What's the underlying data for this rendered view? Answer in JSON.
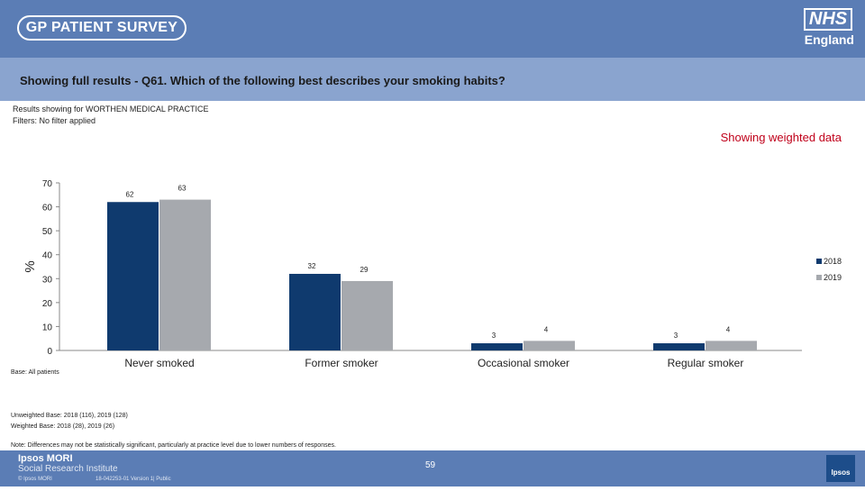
{
  "header": {
    "survey_logo": "GP PATIENT SURVEY",
    "nhs_logo": "NHS",
    "nhs_region": "England"
  },
  "question": "Showing full results - Q61.  Which of the following best describes your smoking habits?",
  "results_for": "Results showing for WORTHEN MEDICAL PRACTICE",
  "filters": "Filters: No filter applied",
  "weighted_label": "Showing weighted data",
  "base_label": "Base: All patients",
  "unweighted_base": "Unweighted Base: 2018 (116), 2019 (128)",
  "weighted_base": "Weighted Base: 2018 (28), 2019 (26)",
  "note": "Note: Differences may not be statistically significant, particularly at practice level due to lower numbers of responses.",
  "footer": {
    "org_line1": "Ipsos MORI",
    "org_line2": "Social Research Institute",
    "copyright": "© Ipsos MORI",
    "job_number": "18-042253-01 Version 1| Public",
    "page_number": "59",
    "badge": "Ipsos"
  },
  "colors": {
    "header": "#5b7db5",
    "question_bar": "#8aa4cf",
    "series_2018": "#0f3a6e",
    "series_2019": "#a6a9ae",
    "weighted_text": "#c0001a"
  },
  "chart_data": {
    "type": "bar",
    "categories": [
      "Never smoked",
      "Former smoker",
      "Occasional smoker",
      "Regular smoker"
    ],
    "series": [
      {
        "name": "2018",
        "values": [
          62,
          32,
          3,
          3
        ]
      },
      {
        "name": "2019",
        "values": [
          63,
          29,
          4,
          4
        ]
      }
    ],
    "ylabel": "%",
    "ylim": [
      0,
      70
    ],
    "yticks": [
      0,
      10,
      20,
      30,
      40,
      50,
      60,
      70
    ],
    "legend": "right",
    "grid": false
  }
}
